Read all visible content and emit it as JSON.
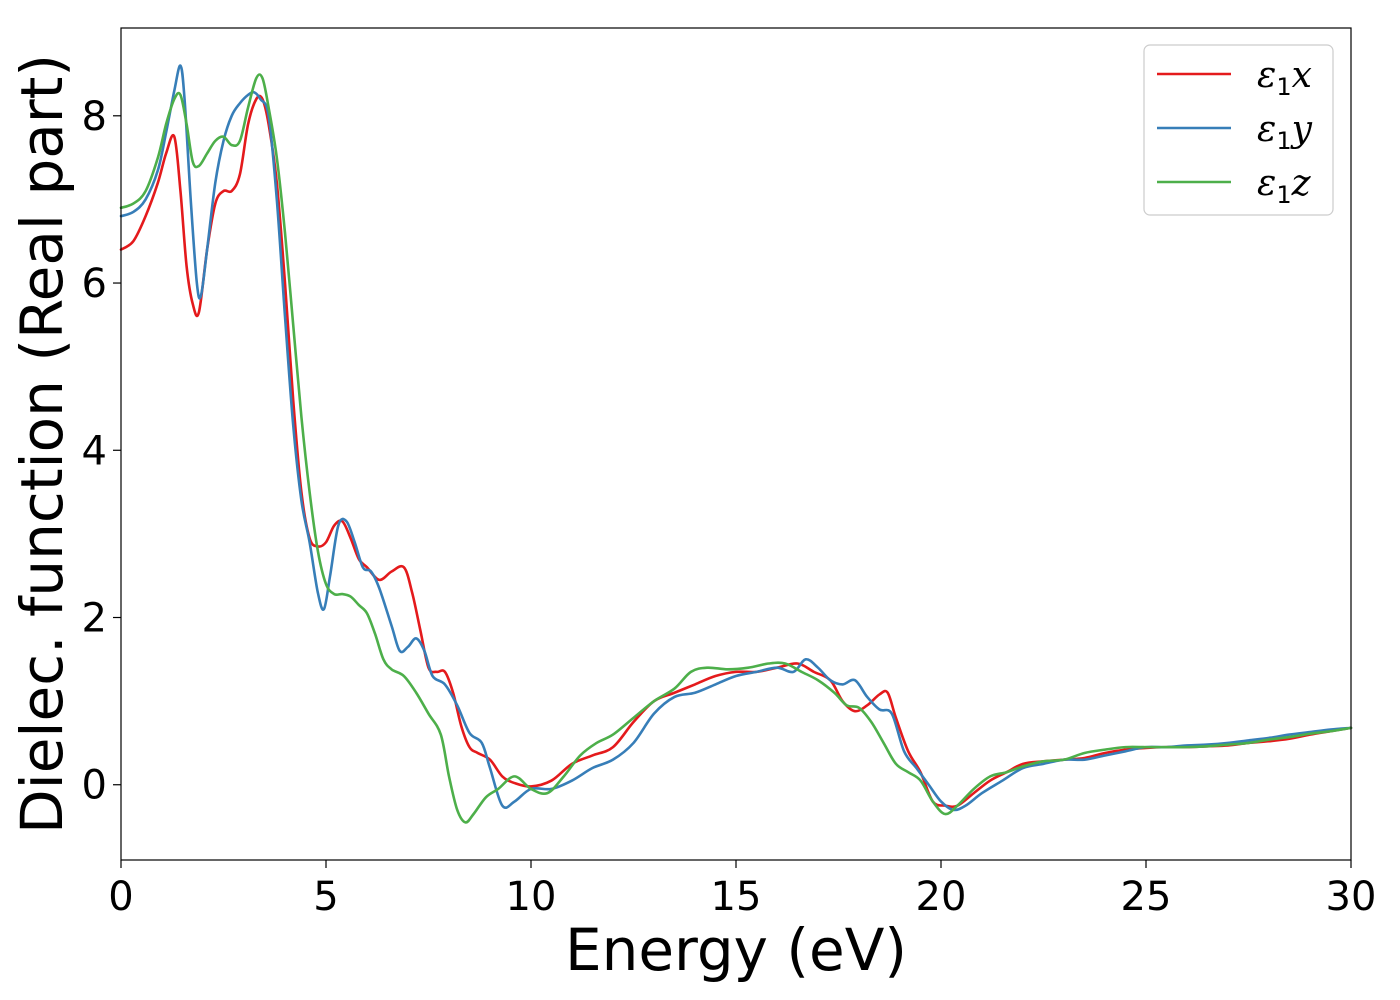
{
  "chart_data": {
    "type": "line",
    "xlabel": "Energy (eV)",
    "ylabel": "Dielec. function (Real part)",
    "xlim": [
      0,
      30
    ],
    "ylim": [
      -0.9,
      9.05
    ],
    "xticks": [
      0,
      5,
      10,
      15,
      20,
      25,
      30
    ],
    "yticks": [
      0,
      2,
      4,
      6,
      8
    ],
    "grid": false,
    "legend_position": "top-right",
    "series": [
      {
        "name": "ε1x",
        "legend_symbol": "ε",
        "legend_subscript": "1",
        "legend_suffix": "x",
        "color": "#e41a1c",
        "x": [
          0,
          0.3,
          0.6,
          0.9,
          1.1,
          1.3,
          1.45,
          1.6,
          1.75,
          1.9,
          2.1,
          2.3,
          2.5,
          2.7,
          2.9,
          3.1,
          3.3,
          3.45,
          3.6,
          3.8,
          4.0,
          4.2,
          4.4,
          4.6,
          4.8,
          5.0,
          5.2,
          5.4,
          5.6,
          5.8,
          6.0,
          6.3,
          6.6,
          6.9,
          7.1,
          7.3,
          7.5,
          7.7,
          7.9,
          8.1,
          8.3,
          8.5,
          8.7,
          9.0,
          9.3,
          9.6,
          10.0,
          10.5,
          11.0,
          11.5,
          12.0,
          12.5,
          13.0,
          13.5,
          14.0,
          14.5,
          15.0,
          15.5,
          16.0,
          16.5,
          16.9,
          17.3,
          17.6,
          17.9,
          18.2,
          18.5,
          18.7,
          18.9,
          19.2,
          19.5,
          19.8,
          20.1,
          20.4,
          20.8,
          21.2,
          21.6,
          22.0,
          22.5,
          23.0,
          23.5,
          24.0,
          24.5,
          25.0,
          25.5,
          26.0,
          26.5,
          27.0,
          27.5,
          28.0,
          28.5,
          29.0,
          29.5,
          30.0
        ],
        "y": [
          6.4,
          6.5,
          6.8,
          7.2,
          7.55,
          7.75,
          7.1,
          6.2,
          5.75,
          5.65,
          6.4,
          6.95,
          7.1,
          7.1,
          7.3,
          7.9,
          8.2,
          8.2,
          7.9,
          7.2,
          6.0,
          4.6,
          3.5,
          2.95,
          2.85,
          2.9,
          3.1,
          3.15,
          2.95,
          2.7,
          2.6,
          2.45,
          2.55,
          2.6,
          2.3,
          1.85,
          1.4,
          1.35,
          1.35,
          1.1,
          0.7,
          0.45,
          0.38,
          0.3,
          0.1,
          0.02,
          -0.02,
          0.05,
          0.25,
          0.35,
          0.45,
          0.75,
          1.0,
          1.1,
          1.2,
          1.3,
          1.35,
          1.35,
          1.4,
          1.45,
          1.35,
          1.25,
          1.0,
          0.88,
          0.95,
          1.08,
          1.1,
          0.8,
          0.4,
          0.15,
          -0.2,
          -0.25,
          -0.25,
          -0.1,
          0.05,
          0.15,
          0.25,
          0.28,
          0.3,
          0.32,
          0.38,
          0.42,
          0.44,
          0.45,
          0.45,
          0.46,
          0.47,
          0.5,
          0.52,
          0.55,
          0.6,
          0.64,
          0.68
        ]
      },
      {
        "name": "ε1y",
        "legend_symbol": "ε",
        "legend_subscript": "1",
        "legend_suffix": "y",
        "color": "#377eb8",
        "x": [
          0,
          0.3,
          0.6,
          0.9,
          1.1,
          1.3,
          1.45,
          1.55,
          1.7,
          1.85,
          1.95,
          2.1,
          2.3,
          2.5,
          2.7,
          2.9,
          3.1,
          3.25,
          3.4,
          3.6,
          3.8,
          4.0,
          4.2,
          4.4,
          4.6,
          4.8,
          4.95,
          5.1,
          5.3,
          5.5,
          5.7,
          5.9,
          6.1,
          6.3,
          6.6,
          6.8,
          7.0,
          7.2,
          7.4,
          7.6,
          7.9,
          8.2,
          8.5,
          8.8,
          9.0,
          9.3,
          9.6,
          10.0,
          10.5,
          11.0,
          11.5,
          12.0,
          12.5,
          13.0,
          13.5,
          14.0,
          14.5,
          15.0,
          15.5,
          16.0,
          16.4,
          16.7,
          17.0,
          17.3,
          17.6,
          17.9,
          18.2,
          18.5,
          18.8,
          19.1,
          19.4,
          19.7,
          20.0,
          20.3,
          20.6,
          21.0,
          21.5,
          22.0,
          22.5,
          23.0,
          23.5,
          24.0,
          24.5,
          25.0,
          25.5,
          26.0,
          26.5,
          27.0,
          27.5,
          28.0,
          28.5,
          29.0,
          29.5,
          30.0
        ],
        "y": [
          6.8,
          6.85,
          7.0,
          7.35,
          7.8,
          8.3,
          8.6,
          8.2,
          7.0,
          6.0,
          5.85,
          6.4,
          7.2,
          7.7,
          8.0,
          8.15,
          8.25,
          8.28,
          8.2,
          8.0,
          7.0,
          5.6,
          4.3,
          3.4,
          2.9,
          2.3,
          2.1,
          2.5,
          3.1,
          3.15,
          2.9,
          2.6,
          2.55,
          2.35,
          1.9,
          1.6,
          1.65,
          1.75,
          1.6,
          1.3,
          1.2,
          0.95,
          0.62,
          0.5,
          0.2,
          -0.25,
          -0.2,
          -0.05,
          -0.05,
          0.05,
          0.2,
          0.3,
          0.5,
          0.85,
          1.05,
          1.1,
          1.2,
          1.3,
          1.35,
          1.4,
          1.35,
          1.5,
          1.4,
          1.25,
          1.2,
          1.25,
          1.05,
          0.9,
          0.85,
          0.4,
          0.2,
          0.0,
          -0.2,
          -0.3,
          -0.25,
          -0.1,
          0.05,
          0.2,
          0.25,
          0.3,
          0.3,
          0.35,
          0.4,
          0.45,
          0.45,
          0.47,
          0.48,
          0.5,
          0.53,
          0.56,
          0.6,
          0.63,
          0.66,
          0.68
        ]
      },
      {
        "name": "ε1z",
        "legend_symbol": "ε",
        "legend_subscript": "1",
        "legend_suffix": "z",
        "color": "#4daf4a",
        "x": [
          0,
          0.3,
          0.6,
          0.9,
          1.1,
          1.3,
          1.45,
          1.6,
          1.75,
          1.9,
          2.1,
          2.3,
          2.5,
          2.7,
          2.9,
          3.1,
          3.3,
          3.45,
          3.6,
          3.8,
          4.0,
          4.2,
          4.4,
          4.6,
          4.8,
          5.0,
          5.2,
          5.4,
          5.6,
          5.8,
          6.0,
          6.2,
          6.4,
          6.6,
          6.9,
          7.2,
          7.5,
          7.8,
          8.0,
          8.2,
          8.4,
          8.6,
          8.9,
          9.2,
          9.6,
          10.0,
          10.4,
          10.8,
          11.2,
          11.6,
          12.0,
          12.5,
          13.0,
          13.5,
          13.9,
          14.3,
          14.8,
          15.3,
          15.8,
          16.2,
          16.6,
          17.0,
          17.4,
          17.7,
          18.0,
          18.3,
          18.6,
          18.9,
          19.2,
          19.5,
          19.8,
          20.1,
          20.4,
          20.8,
          21.2,
          21.6,
          22.0,
          22.5,
          23.0,
          23.5,
          24.0,
          24.5,
          25.0,
          25.5,
          26.0,
          26.5,
          27.0,
          27.5,
          28.0,
          28.5,
          29.0,
          29.5,
          30.0
        ],
        "y": [
          6.9,
          6.95,
          7.1,
          7.5,
          7.9,
          8.2,
          8.25,
          7.9,
          7.45,
          7.4,
          7.55,
          7.7,
          7.75,
          7.65,
          7.7,
          8.1,
          8.45,
          8.45,
          8.1,
          7.5,
          6.6,
          5.5,
          4.4,
          3.5,
          2.8,
          2.4,
          2.28,
          2.28,
          2.25,
          2.15,
          2.05,
          1.8,
          1.5,
          1.38,
          1.3,
          1.1,
          0.85,
          0.6,
          0.1,
          -0.3,
          -0.45,
          -0.35,
          -0.15,
          -0.05,
          0.1,
          -0.05,
          -0.1,
          0.1,
          0.35,
          0.5,
          0.6,
          0.8,
          1.0,
          1.15,
          1.35,
          1.4,
          1.38,
          1.4,
          1.45,
          1.45,
          1.35,
          1.25,
          1.1,
          0.95,
          0.92,
          0.75,
          0.5,
          0.25,
          0.15,
          0.05,
          -0.2,
          -0.35,
          -0.25,
          -0.05,
          0.1,
          0.15,
          0.22,
          0.28,
          0.3,
          0.38,
          0.42,
          0.45,
          0.45,
          0.45,
          0.45,
          0.46,
          0.48,
          0.5,
          0.54,
          0.57,
          0.61,
          0.64,
          0.68
        ]
      }
    ]
  }
}
